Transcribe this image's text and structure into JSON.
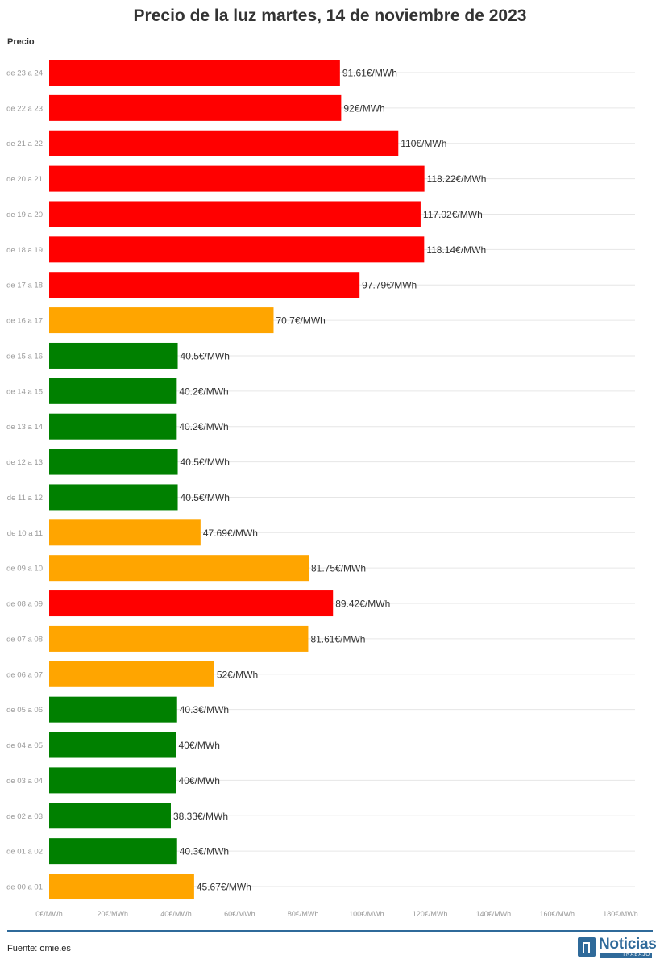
{
  "chart_data": {
    "type": "bar",
    "orientation": "horizontal",
    "title": "Precio de la luz martes, 14 de noviembre de 2023",
    "ylabel": "Precio",
    "xlim": [
      0,
      180
    ],
    "x_ticks": [
      "0€/MWh",
      "20€/MWh",
      "40€/MWh",
      "60€/MWh",
      "80€/MWh",
      "100€/MWh",
      "120€/MWh",
      "140€/MWh",
      "160€/MWh",
      "180€/MWh"
    ],
    "categories": [
      "de 23 a 24",
      "de 22 a 23",
      "de 21 a 22",
      "de 20 a 21",
      "de 19 a 20",
      "de 18 a 19",
      "de 17 a 18",
      "de 16 a 17",
      "de 15 a 16",
      "de 14 a 15",
      "de 13 a 14",
      "de 12 a 13",
      "de 11 a 12",
      "de 10 a 11",
      "de 09 a 10",
      "de 08 a 09",
      "de 07 a 08",
      "de 06 a 07",
      "de 05 a 06",
      "de 04 a 05",
      "de 03 a 04",
      "de 02 a 03",
      "de 01 a 02",
      "de 00 a 01"
    ],
    "values": [
      91.61,
      92,
      110,
      118.22,
      117.02,
      118.14,
      97.79,
      70.7,
      40.5,
      40.2,
      40.2,
      40.5,
      40.5,
      47.69,
      81.75,
      89.42,
      81.61,
      52,
      40.3,
      40,
      40,
      38.33,
      40.3,
      45.67
    ],
    "data_labels": [
      "91.61€/MWh",
      "92€/MWh",
      "110€/MWh",
      "118.22€/MWh",
      "117.02€/MWh",
      "118.14€/MWh",
      "97.79€/MWh",
      "70.7€/MWh",
      "40.5€/MWh",
      "40.2€/MWh",
      "40.2€/MWh",
      "40.5€/MWh",
      "40.5€/MWh",
      "47.69€/MWh",
      "81.75€/MWh",
      "89.42€/MWh",
      "81.61€/MWh",
      "52€/MWh",
      "40.3€/MWh",
      "40€/MWh",
      "40€/MWh",
      "38.33€/MWh",
      "40.3€/MWh",
      "45.67€/MWh"
    ],
    "bar_colors": [
      "#ff0000",
      "#ff0000",
      "#ff0000",
      "#ff0000",
      "#ff0000",
      "#ff0000",
      "#ff0000",
      "#ffa500",
      "#008000",
      "#008000",
      "#008000",
      "#008000",
      "#008000",
      "#ffa500",
      "#ffa500",
      "#ff0000",
      "#ffa500",
      "#ffa500",
      "#008000",
      "#008000",
      "#008000",
      "#008000",
      "#008000",
      "#ffa500"
    ],
    "grid": true
  },
  "footer": {
    "source": "Fuente: omie.es",
    "logo_text": "Noticias",
    "logo_subtext": "TRABAJO"
  }
}
